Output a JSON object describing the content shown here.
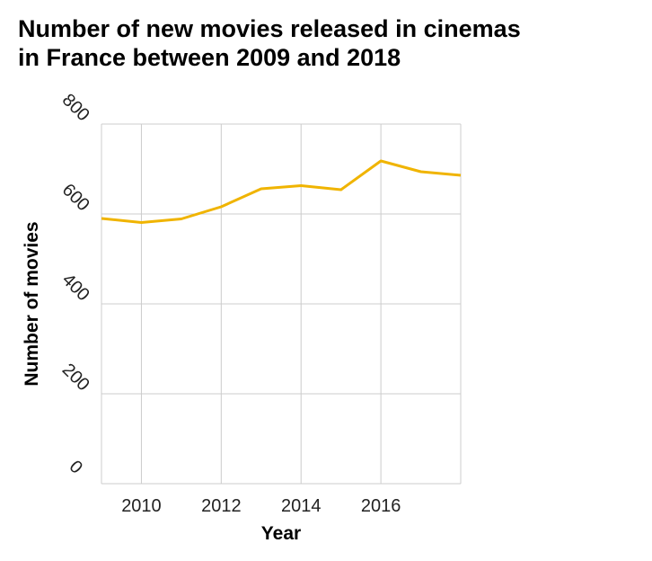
{
  "chart_data": {
    "type": "line",
    "title_lines": [
      "Number of new movies released in cinemas",
      "in France between 2009 and 2018"
    ],
    "xlabel": "Year",
    "ylabel": "Number of movies",
    "xlim": [
      2009,
      2018
    ],
    "ylim": [
      0,
      800
    ],
    "x_ticks": [
      2010,
      2012,
      2014,
      2016
    ],
    "x_tick_labels": [
      "2010",
      "2012",
      "2014",
      "2016"
    ],
    "y_ticks": [
      0,
      200,
      400,
      600,
      800
    ],
    "y_tick_labels": [
      "0",
      "200",
      "400",
      "600",
      "800"
    ],
    "grid": true,
    "series": [
      {
        "color": "#f0b400",
        "x": [
          2009,
          2010,
          2011,
          2012,
          2013,
          2014,
          2015,
          2016,
          2017,
          2018
        ],
        "values": [
          590,
          581,
          589,
          616,
          656,
          663,
          654,
          718,
          694,
          686
        ]
      }
    ]
  }
}
